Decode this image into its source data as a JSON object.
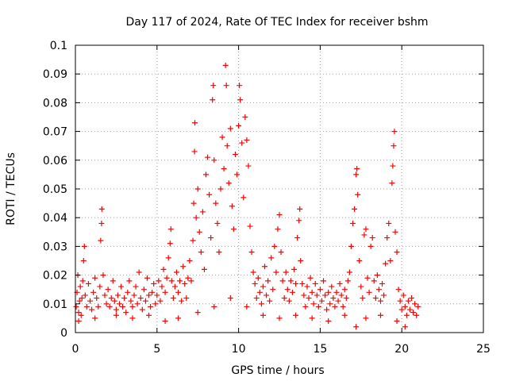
{
  "chart_data": {
    "type": "scatter",
    "title": "Day 117 of 2024, Rate Of TEC Index for receiver bshm",
    "xlabel": "GPS time / hours",
    "ylabel": "ROTI / TECUs",
    "xlim": [
      0,
      25
    ],
    "ylim": [
      0,
      0.1
    ],
    "x_ticks": [
      "0",
      "5",
      "10",
      "15",
      "20",
      "25"
    ],
    "y_ticks": [
      "0",
      "0.01",
      "0.02",
      "0.03",
      "0.04",
      "0.05",
      "0.06",
      "0.07",
      "0.08",
      "0.09",
      "0.1"
    ],
    "grid": true,
    "marker": "+",
    "color": "#ff0000",
    "series": [
      {
        "points": [
          [
            0.05,
            0.009
          ],
          [
            0.1,
            0.014
          ],
          [
            0.15,
            0.02
          ],
          [
            0.2,
            0.007
          ],
          [
            0.25,
            0.011
          ],
          [
            0.3,
            0.016
          ],
          [
            0.35,
            0.006
          ],
          [
            0.4,
            0.012
          ],
          [
            0.45,
            0.018
          ],
          [
            0.5,
            0.025
          ],
          [
            0.55,
            0.03
          ],
          [
            0.6,
            0.013
          ],
          [
            0.7,
            0.009
          ],
          [
            0.8,
            0.017
          ],
          [
            0.9,
            0.011
          ],
          [
            1.0,
            0.008
          ],
          [
            1.1,
            0.014
          ],
          [
            1.2,
            0.019
          ],
          [
            1.3,
            0.012
          ],
          [
            1.4,
            0.009
          ],
          [
            1.5,
            0.016
          ],
          [
            1.55,
            0.032
          ],
          [
            1.6,
            0.038
          ],
          [
            1.62,
            0.043
          ],
          [
            1.7,
            0.02
          ],
          [
            1.8,
            0.013
          ],
          [
            1.9,
            0.01
          ],
          [
            2.0,
            0.015
          ],
          [
            2.1,
            0.009
          ],
          [
            2.2,
            0.012
          ],
          [
            2.3,
            0.018
          ],
          [
            2.4,
            0.011
          ],
          [
            2.5,
            0.008
          ],
          [
            2.6,
            0.013
          ],
          [
            2.7,
            0.01
          ],
          [
            2.8,
            0.016
          ],
          [
            2.9,
            0.009
          ],
          [
            3.0,
            0.012
          ],
          [
            3.1,
            0.007
          ],
          [
            3.2,
            0.014
          ],
          [
            3.3,
            0.018
          ],
          [
            3.4,
            0.011
          ],
          [
            3.5,
            0.009
          ],
          [
            3.6,
            0.013
          ],
          [
            3.7,
            0.016
          ],
          [
            3.8,
            0.01
          ],
          [
            3.9,
            0.021
          ],
          [
            4.0,
            0.012
          ],
          [
            4.1,
            0.008
          ],
          [
            4.2,
            0.015
          ],
          [
            4.3,
            0.011
          ],
          [
            4.4,
            0.019
          ],
          [
            4.5,
            0.013
          ],
          [
            4.6,
            0.009
          ],
          [
            4.7,
            0.014
          ],
          [
            4.8,
            0.017
          ],
          [
            4.9,
            0.01
          ],
          [
            5.0,
            0.013
          ],
          [
            5.1,
            0.018
          ],
          [
            5.2,
            0.011
          ],
          [
            5.3,
            0.016
          ],
          [
            5.4,
            0.022
          ],
          [
            5.5,
            0.014
          ],
          [
            5.6,
            0.019
          ],
          [
            5.7,
            0.026
          ],
          [
            5.8,
            0.031
          ],
          [
            5.85,
            0.036
          ],
          [
            5.9,
            0.018
          ],
          [
            6.0,
            0.012
          ],
          [
            6.1,
            0.016
          ],
          [
            6.2,
            0.021
          ],
          [
            6.3,
            0.014
          ],
          [
            6.4,
            0.018
          ],
          [
            6.5,
            0.011
          ],
          [
            6.6,
            0.023
          ],
          [
            6.7,
            0.017
          ],
          [
            6.8,
            0.012
          ],
          [
            6.9,
            0.019
          ],
          [
            7.0,
            0.025
          ],
          [
            7.1,
            0.018
          ],
          [
            7.2,
            0.032
          ],
          [
            7.25,
            0.045
          ],
          [
            7.3,
            0.063
          ],
          [
            7.32,
            0.073
          ],
          [
            7.4,
            0.04
          ],
          [
            7.5,
            0.05
          ],
          [
            7.6,
            0.035
          ],
          [
            7.7,
            0.028
          ],
          [
            7.8,
            0.042
          ],
          [
            7.9,
            0.022
          ],
          [
            8.0,
            0.055
          ],
          [
            8.1,
            0.061
          ],
          [
            8.2,
            0.048
          ],
          [
            8.3,
            0.033
          ],
          [
            8.4,
            0.081
          ],
          [
            8.45,
            0.086
          ],
          [
            8.5,
            0.06
          ],
          [
            8.6,
            0.045
          ],
          [
            8.7,
            0.038
          ],
          [
            8.8,
            0.028
          ],
          [
            8.9,
            0.05
          ],
          [
            9.0,
            0.068
          ],
          [
            9.1,
            0.057
          ],
          [
            9.2,
            0.093
          ],
          [
            9.25,
            0.086
          ],
          [
            9.3,
            0.065
          ],
          [
            9.4,
            0.052
          ],
          [
            9.5,
            0.071
          ],
          [
            9.6,
            0.044
          ],
          [
            9.7,
            0.036
          ],
          [
            9.8,
            0.062
          ],
          [
            9.9,
            0.055
          ],
          [
            10.0,
            0.072
          ],
          [
            10.05,
            0.086
          ],
          [
            10.1,
            0.081
          ],
          [
            10.2,
            0.066
          ],
          [
            10.3,
            0.047
          ],
          [
            10.4,
            0.075
          ],
          [
            10.5,
            0.067
          ],
          [
            10.6,
            0.058
          ],
          [
            10.7,
            0.037
          ],
          [
            10.8,
            0.028
          ],
          [
            10.9,
            0.021
          ],
          [
            11.0,
            0.017
          ],
          [
            11.1,
            0.012
          ],
          [
            11.2,
            0.019
          ],
          [
            11.3,
            0.014
          ],
          [
            11.4,
            0.01
          ],
          [
            11.5,
            0.016
          ],
          [
            11.6,
            0.023
          ],
          [
            11.7,
            0.013
          ],
          [
            11.8,
            0.018
          ],
          [
            11.9,
            0.011
          ],
          [
            12.0,
            0.026
          ],
          [
            12.1,
            0.015
          ],
          [
            12.2,
            0.03
          ],
          [
            12.3,
            0.021
          ],
          [
            12.4,
            0.036
          ],
          [
            12.5,
            0.041
          ],
          [
            12.6,
            0.028
          ],
          [
            12.7,
            0.018
          ],
          [
            12.8,
            0.012
          ],
          [
            12.9,
            0.021
          ],
          [
            13.0,
            0.015
          ],
          [
            13.1,
            0.011
          ],
          [
            13.2,
            0.018
          ],
          [
            13.3,
            0.014
          ],
          [
            13.4,
            0.022
          ],
          [
            13.5,
            0.017
          ],
          [
            13.6,
            0.033
          ],
          [
            13.7,
            0.039
          ],
          [
            13.75,
            0.043
          ],
          [
            13.8,
            0.025
          ],
          [
            13.9,
            0.017
          ],
          [
            14.0,
            0.013
          ],
          [
            14.1,
            0.009
          ],
          [
            14.2,
            0.016
          ],
          [
            14.3,
            0.012
          ],
          [
            14.4,
            0.019
          ],
          [
            14.5,
            0.014
          ],
          [
            14.6,
            0.01
          ],
          [
            14.7,
            0.017
          ],
          [
            14.8,
            0.013
          ],
          [
            14.9,
            0.009
          ],
          [
            15.0,
            0.015
          ],
          [
            15.1,
            0.011
          ],
          [
            15.2,
            0.018
          ],
          [
            15.3,
            0.013
          ],
          [
            15.4,
            0.008
          ],
          [
            15.5,
            0.014
          ],
          [
            15.6,
            0.01
          ],
          [
            15.7,
            0.016
          ],
          [
            15.8,
            0.012
          ],
          [
            15.9,
            0.009
          ],
          [
            16.0,
            0.014
          ],
          [
            16.1,
            0.011
          ],
          [
            16.2,
            0.017
          ],
          [
            16.3,
            0.013
          ],
          [
            16.4,
            0.009
          ],
          [
            16.5,
            0.015
          ],
          [
            16.6,
            0.012
          ],
          [
            16.7,
            0.018
          ],
          [
            16.8,
            0.021
          ],
          [
            16.9,
            0.03
          ],
          [
            17.0,
            0.038
          ],
          [
            17.1,
            0.043
          ],
          [
            17.2,
            0.055
          ],
          [
            17.25,
            0.057
          ],
          [
            17.3,
            0.048
          ],
          [
            17.4,
            0.025
          ],
          [
            17.5,
            0.016
          ],
          [
            17.6,
            0.012
          ],
          [
            17.7,
            0.034
          ],
          [
            17.8,
            0.036
          ],
          [
            17.9,
            0.019
          ],
          [
            18.0,
            0.014
          ],
          [
            18.1,
            0.03
          ],
          [
            18.2,
            0.033
          ],
          [
            18.3,
            0.018
          ],
          [
            18.4,
            0.012
          ],
          [
            18.5,
            0.02
          ],
          [
            18.6,
            0.015
          ],
          [
            18.7,
            0.011
          ],
          [
            18.8,
            0.017
          ],
          [
            18.9,
            0.013
          ],
          [
            19.0,
            0.024
          ],
          [
            19.1,
            0.033
          ],
          [
            19.2,
            0.038
          ],
          [
            19.3,
            0.025
          ],
          [
            19.4,
            0.052
          ],
          [
            19.45,
            0.058
          ],
          [
            19.5,
            0.065
          ],
          [
            19.55,
            0.07
          ],
          [
            19.6,
            0.035
          ],
          [
            19.7,
            0.028
          ],
          [
            19.8,
            0.015
          ],
          [
            19.9,
            0.011
          ],
          [
            20.0,
            0.008
          ],
          [
            20.1,
            0.013
          ],
          [
            20.2,
            0.009
          ],
          [
            20.3,
            0.006
          ],
          [
            20.4,
            0.011
          ],
          [
            20.5,
            0.008
          ],
          [
            20.6,
            0.012
          ],
          [
            20.7,
            0.007
          ],
          [
            20.8,
            0.01
          ],
          [
            20.9,
            0.006
          ],
          [
            21.0,
            0.009
          ],
          [
            0.2,
            0.004
          ],
          [
            1.2,
            0.005
          ],
          [
            2.5,
            0.006
          ],
          [
            3.5,
            0.005
          ],
          [
            4.5,
            0.006
          ],
          [
            5.5,
            0.004
          ],
          [
            6.3,
            0.005
          ],
          [
            7.5,
            0.007
          ],
          [
            8.5,
            0.009
          ],
          [
            9.5,
            0.012
          ],
          [
            10.5,
            0.009
          ],
          [
            11.5,
            0.006
          ],
          [
            12.5,
            0.005
          ],
          [
            13.5,
            0.006
          ],
          [
            14.5,
            0.005
          ],
          [
            15.5,
            0.004
          ],
          [
            16.5,
            0.006
          ],
          [
            17.2,
            0.002
          ],
          [
            17.8,
            0.005
          ],
          [
            18.7,
            0.006
          ],
          [
            19.7,
            0.004
          ],
          [
            20.2,
            0.002
          ]
        ]
      }
    ]
  }
}
